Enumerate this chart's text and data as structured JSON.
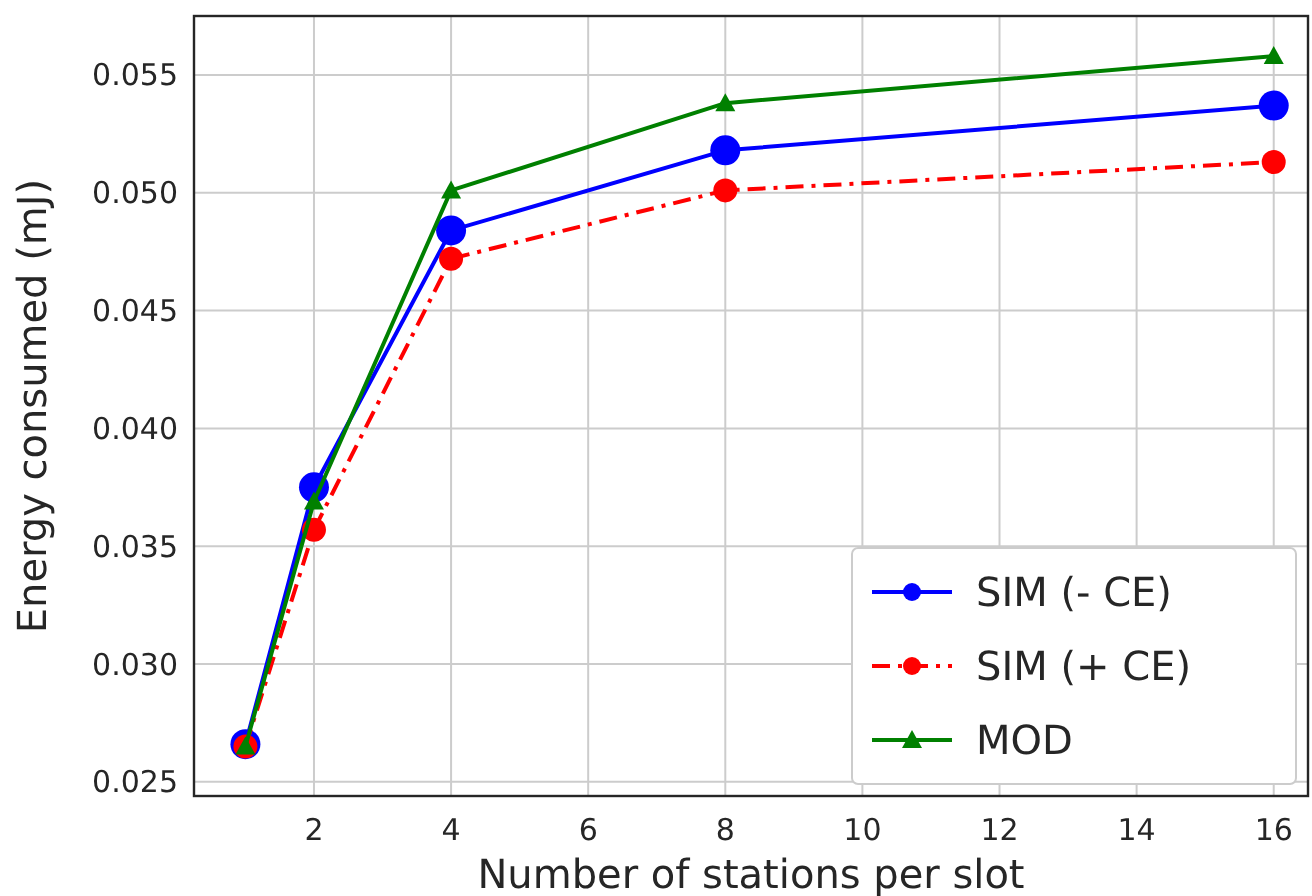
{
  "chart_data": {
    "type": "line",
    "xlabel": "Number of stations per slot",
    "ylabel": "Energy consumed (mJ)",
    "x": [
      1,
      2,
      4,
      8,
      16
    ],
    "series": [
      {
        "name": "SIM (- CE)",
        "color": "#0000ff",
        "values": [
          0.0266,
          0.0375,
          0.0484,
          0.0518,
          0.0537
        ],
        "marker": "circle",
        "line_style": "solid"
      },
      {
        "name": "SIM (+ CE)",
        "color": "#ff0000",
        "values": [
          0.0265,
          0.0357,
          0.0472,
          0.0501,
          0.0513
        ],
        "marker": "circle",
        "line_style": "dashdot"
      },
      {
        "name": "MOD",
        "color": "#008000",
        "values": [
          0.0265,
          0.0369,
          0.0501,
          0.0538,
          0.0558
        ],
        "marker": "triangle",
        "line_style": "solid"
      }
    ],
    "xlim": [
      0.25,
      16.5
    ],
    "xticks": [
      2,
      4,
      6,
      8,
      10,
      12,
      14,
      16
    ],
    "ylim": [
      0.0244,
      0.0575
    ],
    "yticks": [
      {
        "value": 0.025,
        "label": "0.025"
      },
      {
        "value": 0.03,
        "label": "0.030"
      },
      {
        "value": 0.035,
        "label": "0.035"
      },
      {
        "value": 0.04,
        "label": "0.040"
      },
      {
        "value": 0.045,
        "label": "0.045"
      },
      {
        "value": 0.05,
        "label": "0.050"
      },
      {
        "value": 0.055,
        "label": "0.055"
      }
    ],
    "grid": true,
    "legend": "bottom right"
  }
}
